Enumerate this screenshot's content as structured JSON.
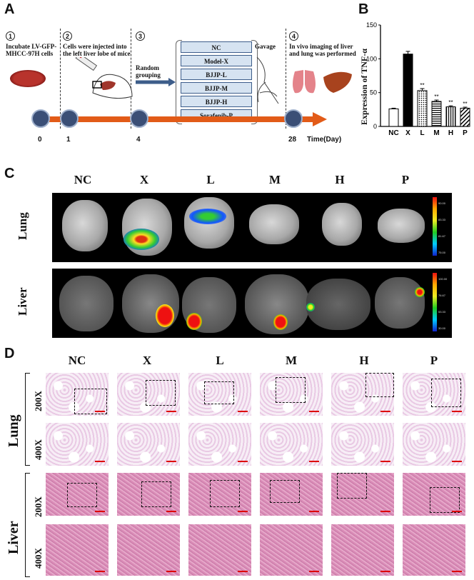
{
  "panels": {
    "a": "A",
    "b": "B",
    "c": "C",
    "d": "D"
  },
  "schematic": {
    "steps": [
      {
        "num": "1",
        "text": "Incubate LV-GFP-MHCC-97H cells"
      },
      {
        "num": "2",
        "text": "Cells were injected into the left liver lobe of mice"
      },
      {
        "num": "3",
        "text": "Random grouping"
      },
      {
        "num": "4",
        "text": "In vivo imaging of liver and lung was performed"
      }
    ],
    "groups": [
      "NC",
      "Model-X",
      "BJJP-L",
      "BJJP-M",
      "BJJP-H",
      "Sorafenib-P"
    ],
    "gavage": "Gavage",
    "timeline_ticks": [
      "0",
      "1",
      "4",
      "28"
    ],
    "time_label": "Time(Day)"
  },
  "chart_data": {
    "type": "bar",
    "categories": [
      "NC",
      "X",
      "L",
      "M",
      "H",
      "P"
    ],
    "values": [
      26,
      107,
      53,
      37,
      29,
      27
    ],
    "errors": [
      1,
      4,
      3,
      2,
      1.5,
      1.5
    ],
    "significance": [
      "",
      "",
      "**",
      "**",
      "**",
      "**"
    ],
    "ylabel": "Expression of TNF-α",
    "yticks": [
      0,
      50,
      100,
      150
    ],
    "ylim": [
      0,
      150
    ],
    "patterns": [
      "white",
      "black",
      "dots",
      "hlines",
      "vlines",
      "diag"
    ]
  },
  "imaging": {
    "columns": [
      "NC",
      "X",
      "L",
      "M",
      "H",
      "P"
    ],
    "rows": [
      "Lung",
      "Liver"
    ],
    "lung_scale": [
      "90.00",
      "83.33",
      "81.67",
      "75.00"
    ],
    "liver_scale": [
      "100.00",
      "76.67",
      "53.33",
      "30.00"
    ]
  },
  "histology": {
    "columns": [
      "NC",
      "X",
      "L",
      "M",
      "H",
      "P"
    ],
    "organs": [
      "Lung",
      "Liver"
    ],
    "magnifications": [
      "200X",
      "400X",
      "200X",
      "400X"
    ]
  }
}
